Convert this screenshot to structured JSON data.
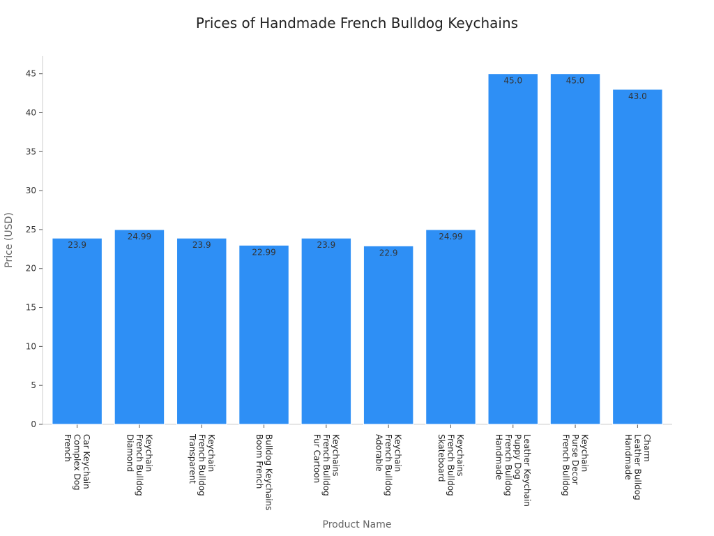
{
  "chart_data": {
    "type": "bar",
    "title": "Prices of Handmade French Bulldog Keychains",
    "xlabel": "Product Name",
    "ylabel": "Price (USD)",
    "ylim": [
      0,
      47.3
    ],
    "yticks": [
      0,
      5,
      10,
      15,
      20,
      25,
      30,
      35,
      40,
      45
    ],
    "grid": false,
    "bar_color": "#2e8ff5",
    "categories": [
      [
        "French",
        "Complex Dog",
        "Car Keychain"
      ],
      [
        "Diamond",
        "French Bulldog",
        "Keychain"
      ],
      [
        "Transparent",
        "French Bulldog",
        "Keychain"
      ],
      [
        "Boom French",
        "Bulldog Keychains"
      ],
      [
        "Fur Cartoon",
        "French Bulldog",
        "Keychains"
      ],
      [
        "Adorable",
        "French Bulldog",
        "Keychain"
      ],
      [
        "Skateboard",
        "French Bulldog",
        "Keychains"
      ],
      [
        "Handmade",
        "French Bulldog",
        "Puppy Dog",
        "Leather Keychain"
      ],
      [
        "French Bulldog",
        "Purse Decor",
        "Keychain"
      ],
      [
        "Handmade",
        "Leather Bulldog",
        "Charm"
      ]
    ],
    "values": [
      23.9,
      24.99,
      23.9,
      22.99,
      23.9,
      22.9,
      24.99,
      45.0,
      45.0,
      43.0
    ],
    "data_labels": [
      "23.9",
      "24.99",
      "23.9",
      "22.99",
      "23.9",
      "22.9",
      "24.99",
      "45.0",
      "45.0",
      "43.0"
    ]
  }
}
